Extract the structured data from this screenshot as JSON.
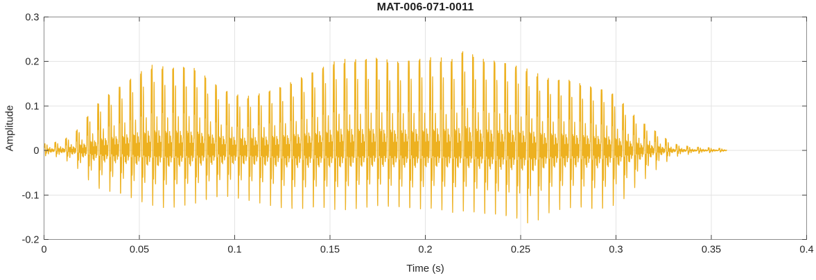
{
  "colors": {
    "background": "#FFFFFF",
    "axes_box": "#8C8C8C",
    "grid": "#E3E3E3",
    "tick": "#3F3F3F",
    "text": "#262626",
    "title_text": "#1F1F1F"
  },
  "chart_data": {
    "type": "line",
    "title": "MAT-006-071-0011",
    "xlabel": "Time (s)",
    "ylabel": "Amplitude",
    "xlim": [
      0,
      0.4
    ],
    "ylim": [
      -0.2,
      0.3
    ],
    "xticks": [
      0,
      0.05,
      0.1,
      0.15,
      0.2,
      0.25,
      0.3,
      0.35,
      0.4
    ],
    "xtick_labels": [
      "0",
      "0.05",
      "0.1",
      "0.15",
      "0.2",
      "0.25",
      "0.3",
      "0.35",
      "0.4"
    ],
    "yticks": [
      -0.2,
      -0.1,
      0,
      0.1,
      0.2,
      0.3
    ],
    "ytick_labels": [
      "-0.2",
      "-0.1",
      "0",
      "0.1",
      "0.2",
      "0.3"
    ],
    "grid": true,
    "box": true,
    "legend": null,
    "line_color": "#EDB120",
    "line_width": 1.3,
    "signal": {
      "description": "voiced speech waveform, peak 0.235 at t=0.225 s, deepest trough -0.17 at t=0.256 s, trace ends at 0.358 s",
      "duration_s": 0.358,
      "sample_rate_hz": 16000,
      "pitch_hz": 178,
      "formant1_hz": 760,
      "formant1_decay_s": 0.0016,
      "formant2_hz": 2000,
      "formant2_decay_s": 0.0035,
      "formant2_amp": 0.5,
      "formant2_phase": 0.9,
      "envelope_t": [
        0.0,
        0.008,
        0.015,
        0.02,
        0.025,
        0.03,
        0.04,
        0.05,
        0.058,
        0.065,
        0.072,
        0.08,
        0.088,
        0.095,
        0.105,
        0.115,
        0.125,
        0.135,
        0.145,
        0.155,
        0.165,
        0.175,
        0.185,
        0.195,
        0.205,
        0.215,
        0.222,
        0.226,
        0.232,
        0.24,
        0.248,
        0.252,
        0.256,
        0.262,
        0.268,
        0.275,
        0.282,
        0.29,
        0.296,
        0.302,
        0.308,
        0.315,
        0.322,
        0.33,
        0.34,
        0.35,
        0.358
      ],
      "envelope_pos": [
        0.015,
        0.02,
        0.035,
        0.06,
        0.09,
        0.115,
        0.145,
        0.175,
        0.195,
        0.185,
        0.19,
        0.185,
        0.155,
        0.135,
        0.12,
        0.13,
        0.145,
        0.165,
        0.185,
        0.205,
        0.205,
        0.21,
        0.2,
        0.205,
        0.21,
        0.205,
        0.235,
        0.21,
        0.205,
        0.2,
        0.19,
        0.185,
        0.18,
        0.165,
        0.16,
        0.16,
        0.15,
        0.14,
        0.135,
        0.115,
        0.085,
        0.06,
        0.04,
        0.015,
        0.008,
        0.006,
        0.004
      ],
      "envelope_neg": [
        0.012,
        0.015,
        0.03,
        0.05,
        0.075,
        0.09,
        0.1,
        0.115,
        0.125,
        0.13,
        0.125,
        0.12,
        0.11,
        0.105,
        0.11,
        0.12,
        0.13,
        0.135,
        0.13,
        0.135,
        0.13,
        0.125,
        0.13,
        0.135,
        0.13,
        0.14,
        0.135,
        0.14,
        0.145,
        0.15,
        0.155,
        0.16,
        0.17,
        0.145,
        0.135,
        0.13,
        0.13,
        0.138,
        0.13,
        0.12,
        0.09,
        0.065,
        0.04,
        0.015,
        0.008,
        0.005,
        0.003
      ]
    }
  }
}
